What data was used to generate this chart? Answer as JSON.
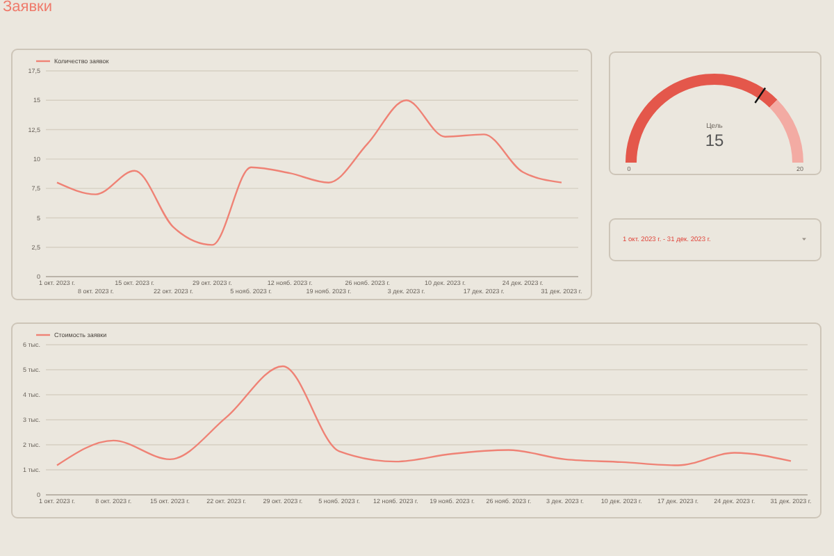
{
  "chart_data": [
    {
      "type": "other",
      "title": "Заявки"
    },
    {
      "type": "line",
      "categories": [
        "1 окт. 2023 г.",
        "8 окт. 2023 г.",
        "15 окт. 2023 г.",
        "22 окт. 2023 г.",
        "29 окт. 2023 г.",
        "5 нояб. 2023 г.",
        "12 нояб. 2023 г.",
        "19 нояб. 2023 г.",
        "26 нояб. 2023 г.",
        "3 дек. 2023 г.",
        "10 дек. 2023 г.",
        "17 дек. 2023 г.",
        "24 дек. 2023 г.",
        "31 дек. 2023 г."
      ],
      "series": [
        {
          "name": "Количество заявок",
          "color": "#ef8275",
          "values": [
            8,
            7,
            9,
            4.2,
            2.7,
            9.3,
            8.8,
            8,
            11.3,
            15,
            11.9,
            12.1,
            8.9,
            8
          ]
        }
      ],
      "ylim": [
        0,
        17.5
      ],
      "yticks": [
        0,
        {
          "value": 2.5,
          "label": "2,5"
        },
        5,
        {
          "value": 7.5,
          "label": "7,5"
        },
        10,
        {
          "value": 12.5,
          "label": "12,5"
        },
        15,
        {
          "value": 17.5,
          "label": "17,5"
        }
      ],
      "grid": "y",
      "legend": "top left",
      "marker": "none",
      "line_style": "solid"
    },
    {
      "type": "donut",
      "title": "Цель",
      "categories": [
        null,
        null
      ],
      "values": [
        75,
        25
      ],
      "colors": [
        "#e4574b",
        "#f3aba3"
      ],
      "annotations": [
        "15",
        "0",
        "20"
      ]
    },
    {
      "type": "other",
      "annotations": [
        "1 окт. 2023 г. - 31 дек. 2023 г."
      ]
    },
    {
      "type": "line",
      "categories": [
        "1 окт. 2023 г.",
        "8 окт. 2023 г.",
        "15 окт. 2023 г.",
        "22 окт. 2023 г.",
        "29 окт. 2023 г.",
        "5 нояб. 2023 г.",
        "12 нояб. 2023 г.",
        "19 нояб. 2023 г.",
        "26 нояб. 2023 г.",
        "3 дек. 2023 г.",
        "10 дек. 2023 г.",
        "17 дек. 2023 г.",
        "24 дек. 2023 г.",
        "31 дек. 2023 г."
      ],
      "series": [
        {
          "name": "Стоимость заявки",
          "color": "#ef8275",
          "values": [
            1.18,
            2.17,
            1.42,
            3.1,
            5.14,
            1.74,
            1.33,
            1.64,
            1.79,
            1.42,
            1.31,
            1.18,
            1.68,
            1.35
          ]
        }
      ],
      "ylim": [
        0,
        6
      ],
      "yticks": [
        0,
        {
          "value": 1,
          "label": "1 тыс."
        },
        {
          "value": 2,
          "label": "2 тыс."
        },
        {
          "value": 3,
          "label": "3 тыс."
        },
        {
          "value": 4,
          "label": "4 тыс."
        },
        {
          "value": 5,
          "label": "5 тыс."
        },
        {
          "value": 6,
          "label": "6 тыс."
        }
      ],
      "grid": "y",
      "legend": "top left",
      "marker": "none",
      "line_style": "solid"
    }
  ]
}
